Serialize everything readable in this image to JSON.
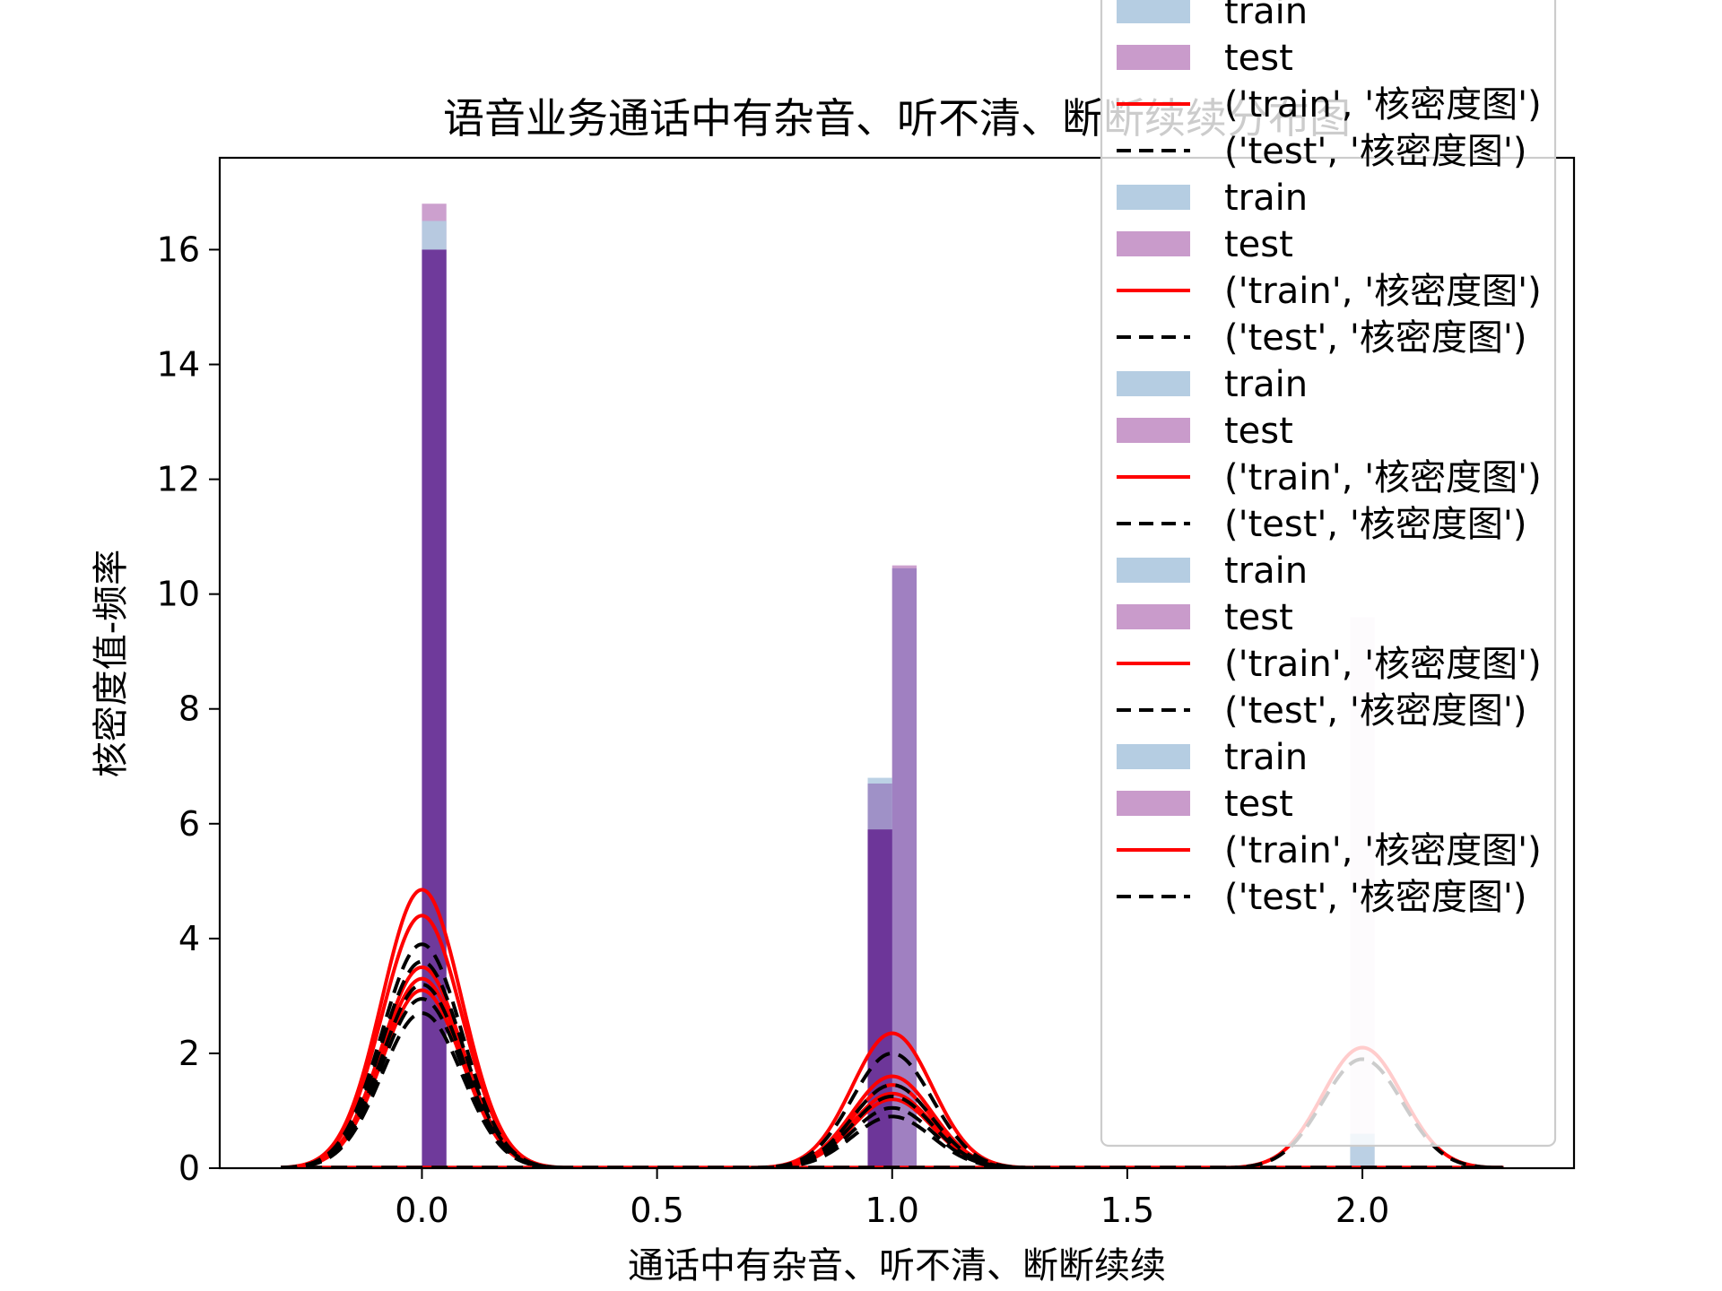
{
  "chart_data": {
    "type": "bar",
    "title": "语音业务通话中有杂音、听不清、断断续续分布图",
    "xlabel": "通话中有杂音、听不清、断断续续",
    "ylabel": "核密度值-频率",
    "xlim": [
      -0.43,
      2.45
    ],
    "ylim": [
      0,
      17.6
    ],
    "x_ticks": [
      0.0,
      0.5,
      1.0,
      1.5,
      2.0
    ],
    "x_tick_labels": [
      "0.0",
      "0.5",
      "1.0",
      "1.5",
      "2.0"
    ],
    "y_ticks": [
      0,
      2,
      4,
      6,
      8,
      10,
      12,
      14,
      16
    ],
    "y_tick_labels": [
      "0",
      "2",
      "4",
      "6",
      "8",
      "10",
      "12",
      "14",
      "16"
    ],
    "grid": false,
    "legend_position": "upper-right",
    "colors": {
      "train_hist": "#b5cde2",
      "test_hist": "#c99bcb",
      "overlap_hist": "#6a3397",
      "train_kde": "#ff0000",
      "test_kde": "#000000"
    },
    "series": [
      {
        "name": "train",
        "kind": "hist",
        "x": [
          0.0,
          1.0,
          2.0
        ],
        "values": [
          16.5,
          6.8,
          0.6
        ]
      },
      {
        "name": "test",
        "kind": "hist",
        "x": [
          0.0,
          1.0,
          2.0
        ],
        "values": [
          16.8,
          10.5,
          9.6
        ]
      },
      {
        "name": "('train', '核密度图')",
        "kind": "kde",
        "peaks": [
          {
            "center": 0.0,
            "heights": [
              4.85,
              4.4,
              3.5,
              3.3,
              3.1
            ]
          },
          {
            "center": 1.0,
            "heights": [
              2.35,
              1.6,
              1.45,
              1.3,
              1.2
            ]
          },
          {
            "center": 2.0,
            "heights": [
              2.1
            ]
          }
        ]
      },
      {
        "name": "('test', '核密度图')",
        "kind": "kde",
        "peaks": [
          {
            "center": 0.0,
            "heights": [
              3.9,
              3.6,
              3.2,
              2.95,
              2.7
            ]
          },
          {
            "center": 1.0,
            "heights": [
              2.0,
              1.45,
              1.25,
              1.05,
              0.9
            ]
          },
          {
            "center": 2.0,
            "heights": [
              1.9
            ]
          }
        ]
      }
    ],
    "legend": [
      {
        "label": "train",
        "kind": "patch",
        "color": "#b5cde2"
      },
      {
        "label": "test",
        "kind": "patch",
        "color": "#c99bcb"
      },
      {
        "label": "('train', '核密度图')",
        "kind": "solid",
        "color": "#ff0000"
      },
      {
        "label": "('test', '核密度图')",
        "kind": "dashed",
        "color": "#000000"
      },
      {
        "label": "train",
        "kind": "patch",
        "color": "#b5cde2"
      },
      {
        "label": "test",
        "kind": "patch",
        "color": "#c99bcb"
      },
      {
        "label": "('train', '核密度图')",
        "kind": "solid",
        "color": "#ff0000"
      },
      {
        "label": "('test', '核密度图')",
        "kind": "dashed",
        "color": "#000000"
      },
      {
        "label": "train",
        "kind": "patch",
        "color": "#b5cde2"
      },
      {
        "label": "test",
        "kind": "patch",
        "color": "#c99bcb"
      },
      {
        "label": "('train', '核密度图')",
        "kind": "solid",
        "color": "#ff0000"
      },
      {
        "label": "('test', '核密度图')",
        "kind": "dashed",
        "color": "#000000"
      },
      {
        "label": "train",
        "kind": "patch",
        "color": "#b5cde2"
      },
      {
        "label": "test",
        "kind": "patch",
        "color": "#c99bcb"
      },
      {
        "label": "('train', '核密度图')",
        "kind": "solid",
        "color": "#ff0000"
      },
      {
        "label": "('test', '核密度图')",
        "kind": "dashed",
        "color": "#000000"
      },
      {
        "label": "train",
        "kind": "patch",
        "color": "#b5cde2"
      },
      {
        "label": "test",
        "kind": "patch",
        "color": "#c99bcb"
      },
      {
        "label": "('train', '核密度图')",
        "kind": "solid",
        "color": "#ff0000"
      },
      {
        "label": "('test', '核密度图')",
        "kind": "dashed",
        "color": "#000000"
      }
    ]
  }
}
